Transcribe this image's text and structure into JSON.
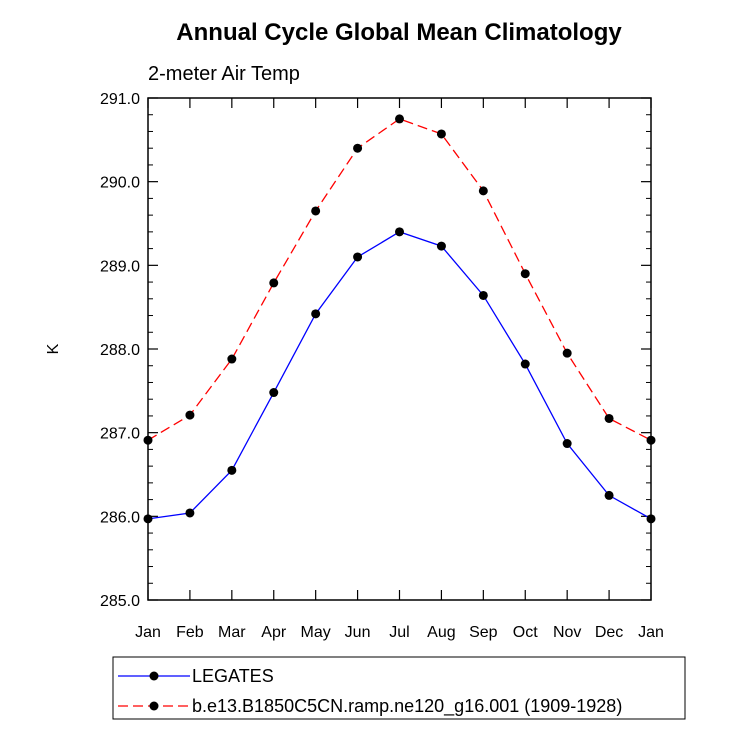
{
  "chart_data": {
    "type": "line",
    "title": "Annual Cycle Global Mean Climatology",
    "subtitle": "2-meter Air Temp",
    "xlabel": "",
    "ylabel": "K",
    "categories": [
      "Jan",
      "Feb",
      "Mar",
      "Apr",
      "May",
      "Jun",
      "Jul",
      "Aug",
      "Sep",
      "Oct",
      "Nov",
      "Dec",
      "Jan"
    ],
    "ylim": [
      285.0,
      291.0
    ],
    "yticks": [
      "285.0",
      "286.0",
      "287.0",
      "288.0",
      "289.0",
      "290.0",
      "291.0"
    ],
    "grid": false,
    "legend_position": "bottom",
    "series": [
      {
        "name": "LEGATES",
        "color": "#0000ff",
        "line_style": "solid",
        "marker": "filled-circle",
        "values": [
          285.97,
          286.04,
          286.55,
          287.48,
          288.42,
          289.1,
          289.4,
          289.23,
          288.64,
          287.82,
          286.87,
          286.25,
          285.97
        ]
      },
      {
        "name": "b.e13.B1850C5CN.ramp.ne120_g16.001 (1909-1928)",
        "color": "#ff0000",
        "line_style": "dashed",
        "marker": "filled-circle",
        "values": [
          286.91,
          287.21,
          287.88,
          288.79,
          289.65,
          290.4,
          290.75,
          290.57,
          289.89,
          288.9,
          287.95,
          287.17,
          286.91
        ]
      }
    ]
  }
}
